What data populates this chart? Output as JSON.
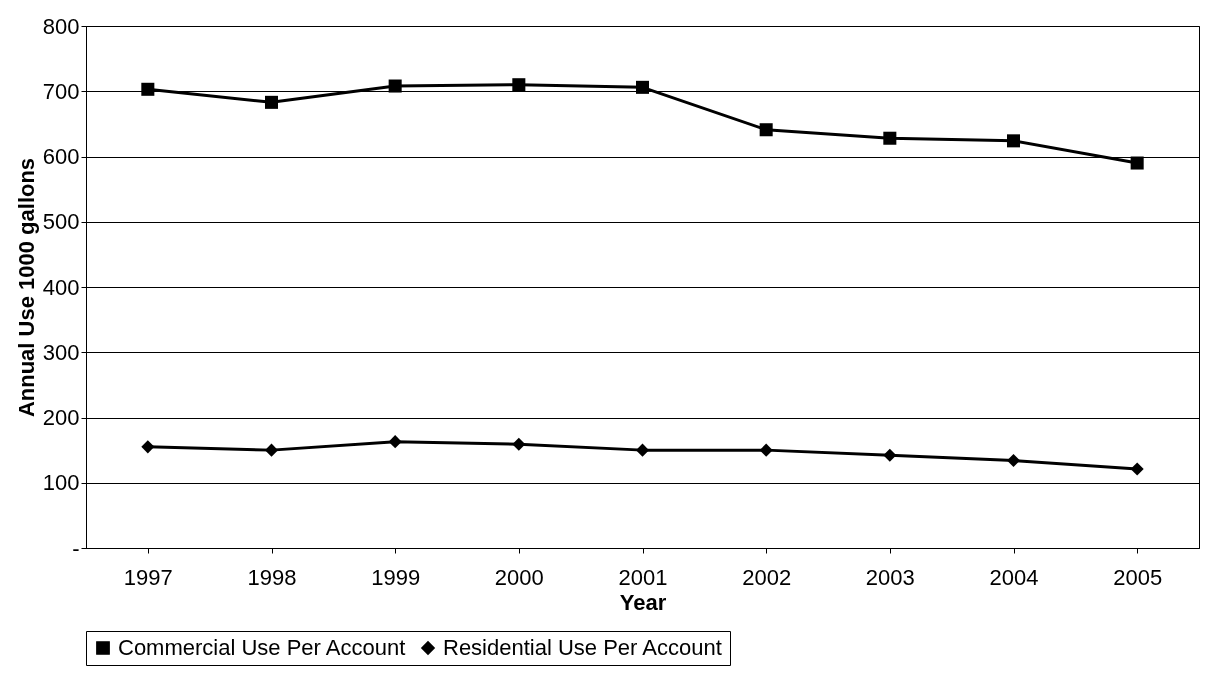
{
  "chart_data": {
    "type": "line",
    "xlabel": "Year",
    "ylabel": "Annual Use 1000 gallons",
    "categories": [
      "1997",
      "1998",
      "1999",
      "2000",
      "2001",
      "2002",
      "2003",
      "2004",
      "2005"
    ],
    "ylim": [
      0,
      800
    ],
    "yticks": [
      {
        "value": 0,
        "label": "-"
      },
      100,
      200,
      300,
      400,
      500,
      600,
      700,
      800
    ],
    "grid": "y",
    "legend": "bottom",
    "line_style": "solid",
    "series": [
      {
        "name": "Commercial Use Per Account",
        "color": "#000000",
        "marker": "square",
        "values": [
          703,
          683,
          708,
          710,
          706,
          641,
          628,
          624,
          590
        ]
      },
      {
        "name": "Residential Use Per Account",
        "color": "#000000",
        "marker": "diamond",
        "values": [
          155,
          150,
          163,
          159,
          150,
          150,
          142,
          134,
          121
        ]
      }
    ]
  }
}
